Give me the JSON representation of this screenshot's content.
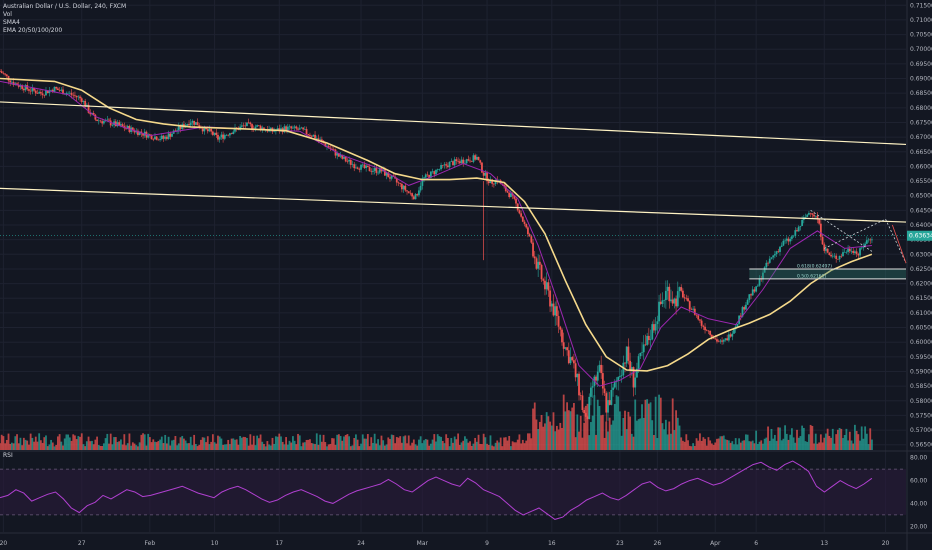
{
  "legend": {
    "title": "Australian Dollar / U.S. Dollar, 240, FXCM",
    "vol": "Vol",
    "sma": "SMA4",
    "ema": "EMA 20/50/100/200"
  },
  "rsi_label": "RSI",
  "price_badge": "0.63634",
  "fib_labels": [
    "0.618(0.62497)",
    "0.5(0.62161)"
  ],
  "colors": {
    "background": "#131722",
    "grid": "#1e2230",
    "up": "#26a69a",
    "down": "#ef5350",
    "ema_slow": "#f5d98b",
    "ema_fast": "#9c27b0",
    "trendline": "#fff3c4",
    "rsi": "#b040d0",
    "rsi_band": "#2a1a3a",
    "axis_text": "#b2b5be"
  },
  "chart_data": {
    "type": "candlestick",
    "y_axis_ticks": [
      "0.71500",
      "0.71000",
      "0.70500",
      "0.70000",
      "0.69500",
      "0.69000",
      "0.68500",
      "0.68000",
      "0.67500",
      "0.67000",
      "0.66500",
      "0.66000",
      "0.65500",
      "0.65000",
      "0.64500",
      "0.64000",
      "0.63500",
      "0.63000",
      "0.62500",
      "0.62000",
      "0.61500",
      "0.61000",
      "0.60500",
      "0.60000",
      "0.59500",
      "0.59000",
      "0.58500",
      "0.58000",
      "0.57500",
      "0.57000",
      "0.56500"
    ],
    "ylim": [
      0.5632,
      0.7168
    ],
    "rsi_ticks": [
      "80.00",
      "60.00",
      "40.00",
      "20.00"
    ],
    "rsi_lim": [
      15,
      85
    ],
    "x_axis_ticks": [
      "20",
      "27",
      "Feb",
      "10",
      "17",
      "24",
      "Mar",
      "9",
      "16",
      "23",
      "26",
      "Apr",
      "6",
      "13",
      "20"
    ],
    "price_ticks": [
      0.715,
      0.71,
      0.705,
      0.7,
      0.695,
      0.69,
      0.685,
      0.68,
      0.675,
      0.67,
      0.665,
      0.66,
      0.655,
      0.65,
      0.645,
      0.64,
      0.635,
      0.63,
      0.625,
      0.62,
      0.615,
      0.61,
      0.605,
      0.6,
      0.595,
      0.59,
      0.585,
      0.58,
      0.575,
      0.57,
      0.565
    ],
    "x_ticks_pos": [
      0.5,
      12,
      22,
      31.5,
      41,
      53,
      62,
      71.5,
      81,
      91,
      96.5,
      105,
      111,
      121,
      130
    ],
    "closes": [
      [
        0,
        0.6925
      ],
      [
        2,
        0.6885
      ],
      [
        4,
        0.6865
      ],
      [
        6,
        0.685
      ],
      [
        8,
        0.6865
      ],
      [
        10,
        0.685
      ],
      [
        12,
        0.683
      ],
      [
        13,
        0.679
      ],
      [
        14,
        0.676
      ],
      [
        16,
        0.675
      ],
      [
        18,
        0.6735
      ],
      [
        20,
        0.672
      ],
      [
        22,
        0.6705
      ],
      [
        24,
        0.6695
      ],
      [
        26,
        0.6725
      ],
      [
        28,
        0.6755
      ],
      [
        29,
        0.6745
      ],
      [
        30,
        0.6725
      ],
      [
        31,
        0.6715
      ],
      [
        32,
        0.6695
      ],
      [
        34,
        0.672
      ],
      [
        36,
        0.674
      ],
      [
        38,
        0.6735
      ],
      [
        40,
        0.672
      ],
      [
        42,
        0.673
      ],
      [
        44,
        0.6725
      ],
      [
        46,
        0.6705
      ],
      [
        48,
        0.667
      ],
      [
        50,
        0.663
      ],
      [
        52,
        0.6605
      ],
      [
        54,
        0.659
      ],
      [
        56,
        0.6585
      ],
      [
        58,
        0.655
      ],
      [
        60,
        0.651
      ],
      [
        61,
        0.6495
      ],
      [
        62,
        0.6555
      ],
      [
        64,
        0.6585
      ],
      [
        66,
        0.661
      ],
      [
        68,
        0.662
      ],
      [
        70,
        0.663
      ],
      [
        71,
        0.6575
      ],
      [
        72,
        0.6545
      ],
      [
        73,
        0.6555
      ],
      [
        74,
        0.6525
      ],
      [
        75,
        0.65
      ],
      [
        76,
        0.646
      ],
      [
        77,
        0.64
      ],
      [
        78,
        0.634
      ],
      [
        79,
        0.625
      ],
      [
        80,
        0.619
      ],
      [
        81,
        0.613
      ],
      [
        82,
        0.606
      ],
      [
        83,
        0.598
      ],
      [
        84,
        0.593
      ],
      [
        85,
        0.584
      ],
      [
        86,
        0.572
      ],
      [
        87,
        0.585
      ],
      [
        88,
        0.59
      ],
      [
        89,
        0.578
      ],
      [
        90,
        0.583
      ],
      [
        91,
        0.59
      ],
      [
        92,
        0.596
      ],
      [
        93,
        0.587
      ],
      [
        94,
        0.594
      ],
      [
        95,
        0.6
      ],
      [
        96,
        0.606
      ],
      [
        97,
        0.613
      ],
      [
        98,
        0.618
      ],
      [
        99,
        0.614
      ],
      [
        100,
        0.617
      ],
      [
        101,
        0.613
      ],
      [
        102,
        0.61
      ],
      [
        103,
        0.606
      ],
      [
        104,
        0.604
      ],
      [
        105,
        0.601
      ],
      [
        106,
        0.5995
      ],
      [
        107,
        0.602
      ],
      [
        108,
        0.606
      ],
      [
        109,
        0.611
      ],
      [
        110,
        0.616
      ],
      [
        111,
        0.618
      ],
      [
        112,
        0.624
      ],
      [
        113,
        0.628
      ],
      [
        114,
        0.631
      ],
      [
        115,
        0.634
      ],
      [
        116,
        0.635
      ],
      [
        117,
        0.638
      ],
      [
        118,
        0.642
      ],
      [
        119,
        0.645
      ],
      [
        120,
        0.642
      ],
      [
        121,
        0.632
      ],
      [
        122,
        0.629
      ],
      [
        123,
        0.629
      ],
      [
        124,
        0.631
      ],
      [
        125,
        0.632
      ],
      [
        126,
        0.63
      ],
      [
        127,
        0.634
      ],
      [
        128,
        0.636
      ]
    ],
    "ema_slow": [
      [
        0,
        0.69
      ],
      [
        8,
        0.689
      ],
      [
        12,
        0.686
      ],
      [
        16,
        0.68
      ],
      [
        20,
        0.676
      ],
      [
        24,
        0.6745
      ],
      [
        28,
        0.6735
      ],
      [
        36,
        0.6728
      ],
      [
        42,
        0.6722
      ],
      [
        48,
        0.668
      ],
      [
        54,
        0.662
      ],
      [
        58,
        0.6575
      ],
      [
        62,
        0.6555
      ],
      [
        66,
        0.6555
      ],
      [
        70,
        0.656
      ],
      [
        74,
        0.6545
      ],
      [
        77,
        0.648
      ],
      [
        80,
        0.637
      ],
      [
        83,
        0.621
      ],
      [
        86,
        0.606
      ],
      [
        89,
        0.595
      ],
      [
        92,
        0.5905
      ],
      [
        95,
        0.5902
      ],
      [
        98,
        0.592
      ],
      [
        101,
        0.596
      ],
      [
        104,
        0.601
      ],
      [
        107,
        0.604
      ],
      [
        110,
        0.6065
      ],
      [
        113,
        0.6095
      ],
      [
        116,
        0.614
      ],
      [
        119,
        0.62
      ],
      [
        122,
        0.6245
      ],
      [
        125,
        0.6275
      ],
      [
        128,
        0.63
      ]
    ],
    "ema_fast": [
      [
        0,
        0.689
      ],
      [
        10,
        0.6845
      ],
      [
        14,
        0.677
      ],
      [
        18,
        0.6735
      ],
      [
        22,
        0.6705
      ],
      [
        26,
        0.672
      ],
      [
        30,
        0.6735
      ],
      [
        36,
        0.6728
      ],
      [
        44,
        0.672
      ],
      [
        50,
        0.664
      ],
      [
        56,
        0.659
      ],
      [
        60,
        0.6535
      ],
      [
        64,
        0.657
      ],
      [
        68,
        0.661
      ],
      [
        72,
        0.6575
      ],
      [
        76,
        0.649
      ],
      [
        79,
        0.633
      ],
      [
        82,
        0.613
      ],
      [
        85,
        0.592
      ],
      [
        88,
        0.585
      ],
      [
        91,
        0.587
      ],
      [
        94,
        0.591
      ],
      [
        97,
        0.605
      ],
      [
        100,
        0.612
      ],
      [
        104,
        0.608
      ],
      [
        108,
        0.606
      ],
      [
        112,
        0.618
      ],
      [
        116,
        0.632
      ],
      [
        120,
        0.638
      ],
      [
        124,
        0.632
      ],
      [
        128,
        0.633
      ]
    ],
    "trendlines": [
      {
        "from": [
          0,
          0.682
        ],
        "to": [
          133,
          0.6675
        ]
      },
      {
        "from": [
          0,
          0.6525
        ],
        "to": [
          133,
          0.641
        ]
      }
    ],
    "rsi": [
      45,
      47,
      52,
      49,
      42,
      45,
      48,
      50,
      44,
      36,
      32,
      38,
      41,
      47,
      44,
      48,
      52,
      50,
      46,
      47,
      49,
      51,
      53,
      55,
      52,
      49,
      47,
      45,
      50,
      53,
      55,
      52,
      48,
      44,
      41,
      43,
      47,
      50,
      52,
      49,
      46,
      42,
      40,
      44,
      48,
      51,
      53,
      55,
      57,
      61,
      57,
      52,
      50,
      55,
      60,
      63,
      60,
      57,
      55,
      62,
      58,
      52,
      49,
      46,
      40,
      34,
      30,
      33,
      36,
      31,
      26,
      28,
      34,
      38,
      43,
      46,
      49,
      45,
      43,
      47,
      52,
      57,
      59,
      54,
      51,
      53,
      57,
      60,
      62,
      59,
      56,
      58,
      62,
      66,
      70,
      74,
      76,
      72,
      69,
      74,
      77,
      73,
      68,
      55,
      50,
      55,
      60,
      56,
      53,
      57,
      62
    ],
    "volume_seed": 7
  }
}
